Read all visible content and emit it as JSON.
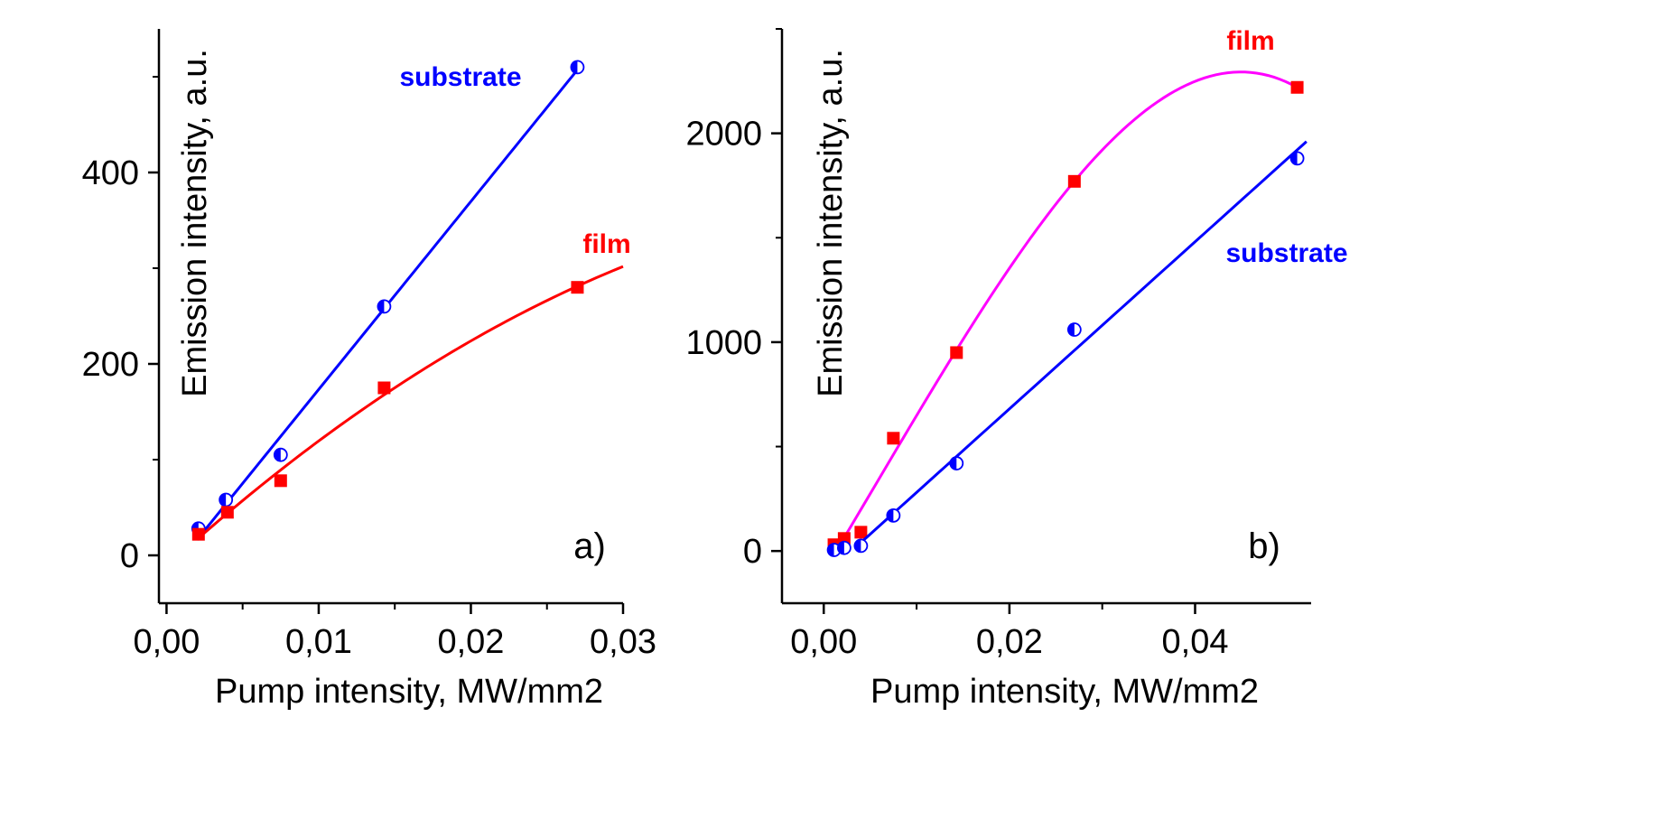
{
  "chart_data": [
    {
      "type": "scatter",
      "panel_label": "a)",
      "xlabel": "Pump intensity, MW/mm2",
      "ylabel": "Emission intensity, a.u.",
      "xlim": [
        -0.0005,
        0.03
      ],
      "ylim": [
        -50,
        550
      ],
      "xticks": [
        0.0,
        0.01,
        0.02,
        0.03
      ],
      "xtick_labels": [
        "0,00",
        "0,01",
        "0,02",
        "0,03"
      ],
      "yticks": [
        0,
        200,
        400
      ],
      "ytick_labels": [
        "0",
        "200",
        "400"
      ],
      "grid": false,
      "series": [
        {
          "name": "substrate",
          "color": "#0000ff",
          "marker": "half-filled-circle",
          "x": [
            0.0021,
            0.0039,
            0.0075,
            0.0143,
            0.027
          ],
          "y": [
            28,
            58,
            105,
            260,
            510
          ],
          "fit": "linear",
          "fit_range": [
            0.002,
            0.0273
          ]
        },
        {
          "name": "film",
          "color": "#ff0000",
          "marker": "filled-square",
          "x": [
            0.0021,
            0.004,
            0.0075,
            0.0143,
            0.027
          ],
          "y": [
            22,
            45,
            78,
            175,
            280
          ],
          "fit": "polynomial",
          "fit_range": [
            0.002,
            0.03
          ]
        }
      ]
    },
    {
      "type": "scatter",
      "panel_label": "b)",
      "xlabel": "Pump intensity, MW/mm2",
      "ylabel": "Emission intensity, a.u.",
      "xlim": [
        -0.0045,
        0.0525
      ],
      "ylim": [
        -250,
        2500
      ],
      "xticks": [
        0.0,
        0.02,
        0.04
      ],
      "xtick_labels": [
        "0,00",
        "0,02",
        "0,04"
      ],
      "yticks": [
        0,
        1000,
        2000
      ],
      "ytick_labels": [
        "0",
        "1000",
        "2000"
      ],
      "grid": false,
      "series": [
        {
          "name": "film",
          "color": "#ff0000",
          "fit_color": "#ff00ff",
          "marker": "filled-square",
          "x": [
            0.0011,
            0.0022,
            0.004,
            0.0075,
            0.0143,
            0.027,
            0.051
          ],
          "y": [
            30,
            60,
            90,
            540,
            950,
            1770,
            2220
          ],
          "fit": "polynomial",
          "fit_range": [
            0.001,
            0.051
          ]
        },
        {
          "name": "substrate",
          "color": "#0000ff",
          "marker": "half-filled-circle",
          "x": [
            0.0011,
            0.0022,
            0.004,
            0.0075,
            0.0143,
            0.027,
            0.051
          ],
          "y": [
            5,
            15,
            25,
            170,
            420,
            1060,
            1880
          ],
          "fit": "linear",
          "fit_range": [
            0.0035,
            0.052
          ]
        }
      ]
    }
  ]
}
